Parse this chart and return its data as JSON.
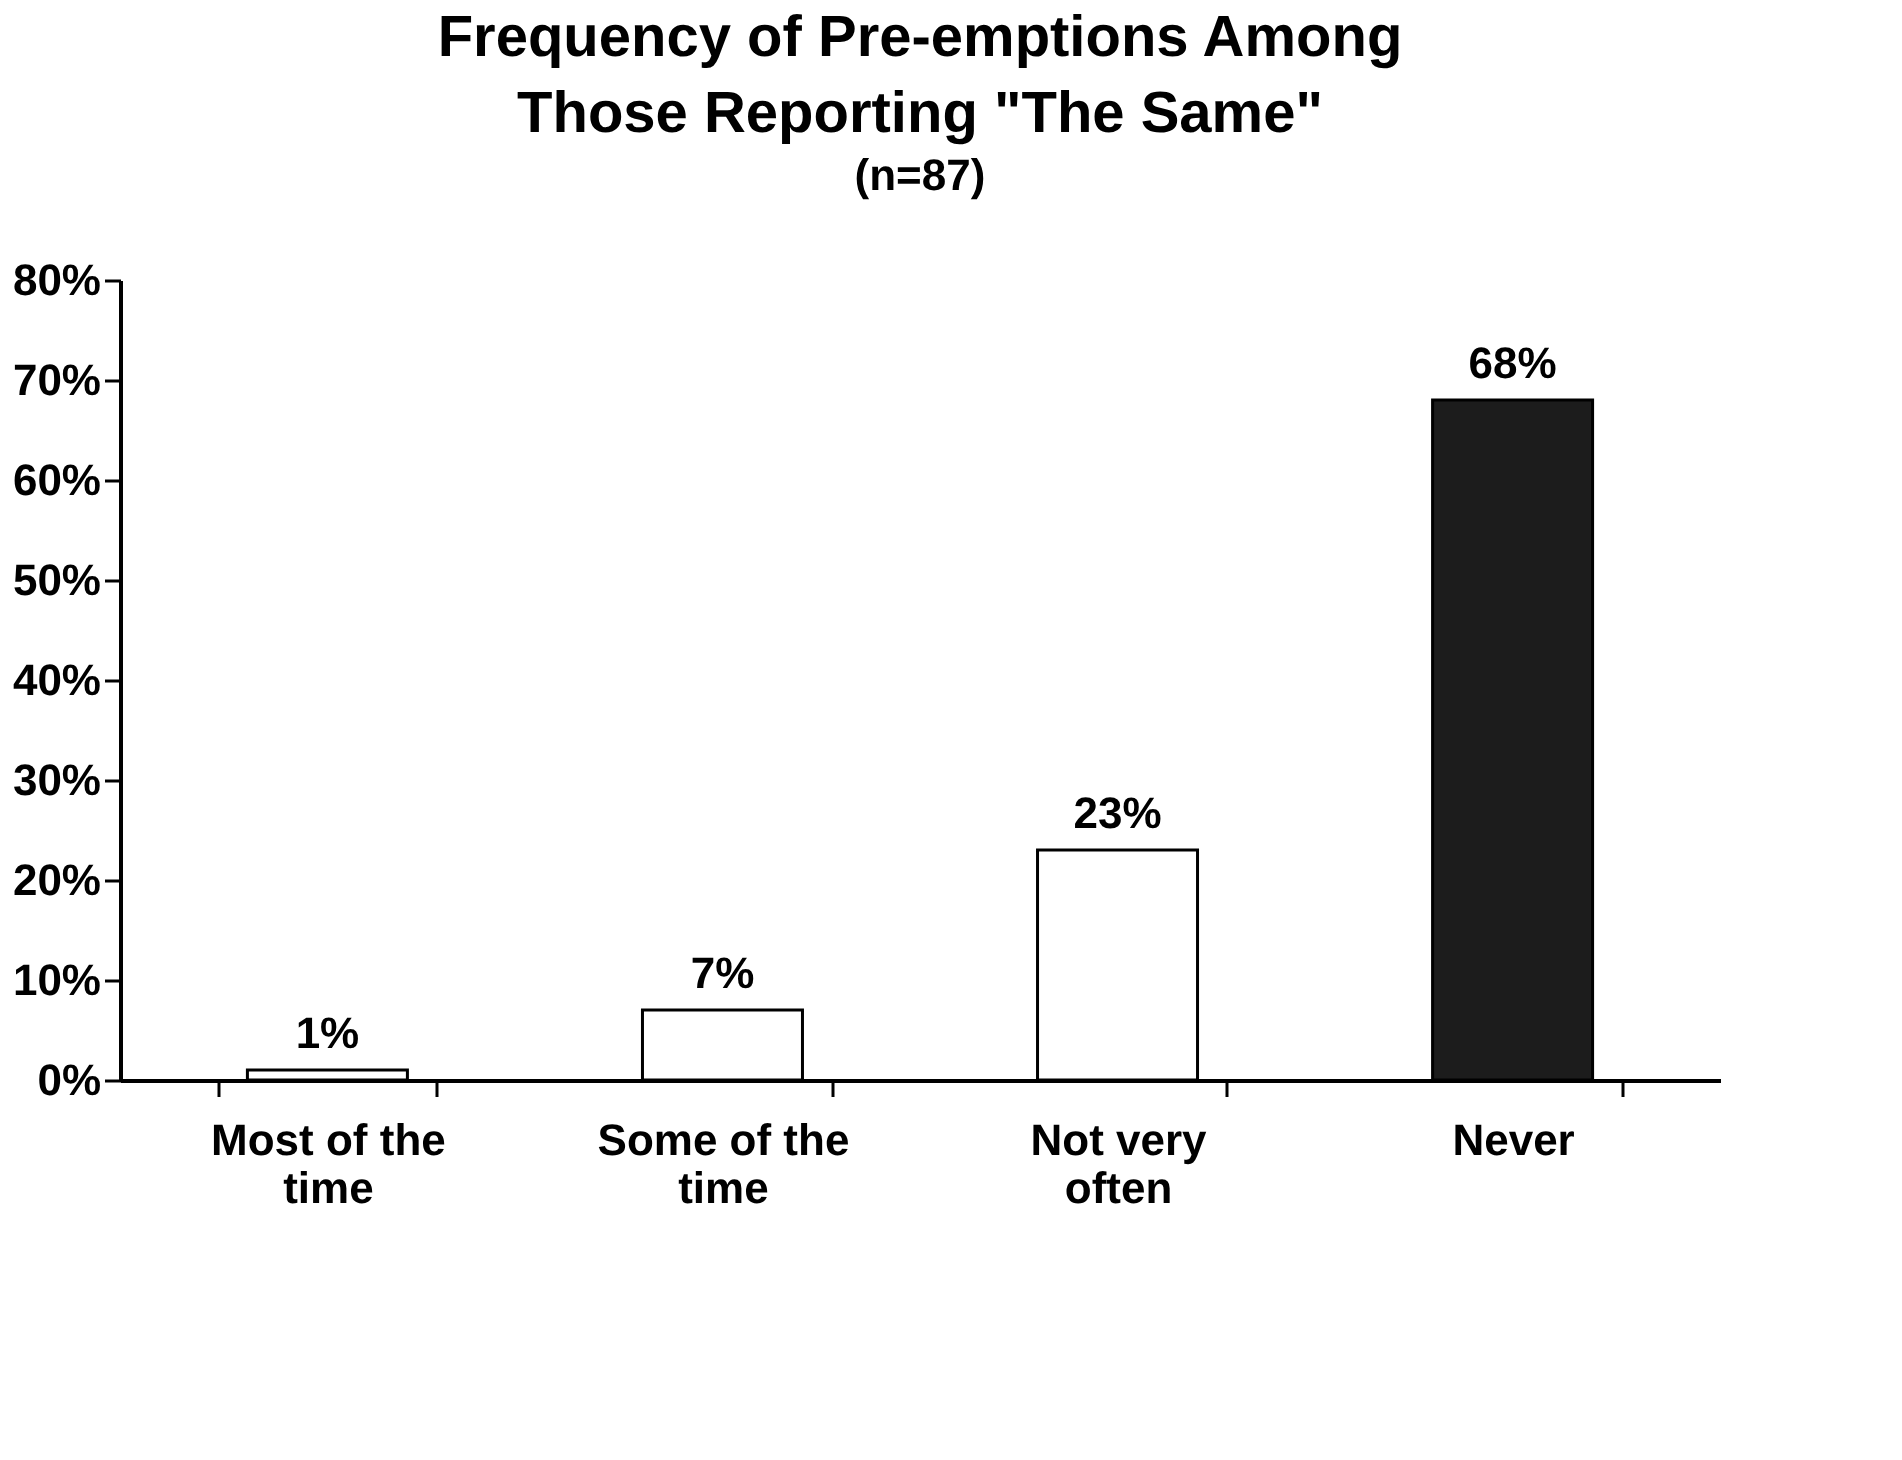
{
  "chart_data": {
    "type": "bar",
    "title": "Frequency of Pre-emptions Among Those Reporting \"The Same\"",
    "subtitle": "(n=87)",
    "categories": [
      "Most of the time",
      "Some of the time",
      "Not very often",
      "Never"
    ],
    "values": [
      1,
      7,
      23,
      68
    ],
    "colors": [
      "#ffffff",
      "#ffffff",
      "#ffffff",
      "#1c1c1c"
    ],
    "value_labels": [
      "1%",
      "7%",
      "23%",
      "68%"
    ],
    "ylim": [
      0,
      80
    ],
    "yticks": [
      {
        "value": 0,
        "label": "0%"
      },
      {
        "value": 10,
        "label": "10%"
      },
      {
        "value": 20,
        "label": "20%"
      },
      {
        "value": 30,
        "label": "30%"
      },
      {
        "value": 40,
        "label": "40%"
      },
      {
        "value": 50,
        "label": "50%"
      },
      {
        "value": 60,
        "label": "60%"
      },
      {
        "value": 70,
        "label": "70%"
      },
      {
        "value": 80,
        "label": "80%"
      }
    ],
    "grid": false
  }
}
